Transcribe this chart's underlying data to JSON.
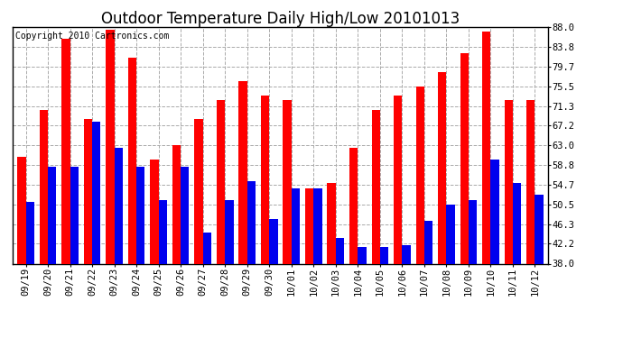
{
  "title": "Outdoor Temperature Daily High/Low 20101013",
  "copyright": "Copyright 2010 Cartronics.com",
  "dates": [
    "09/19",
    "09/20",
    "09/21",
    "09/22",
    "09/23",
    "09/24",
    "09/25",
    "09/26",
    "09/27",
    "09/28",
    "09/29",
    "09/30",
    "10/01",
    "10/02",
    "10/03",
    "10/04",
    "10/05",
    "10/06",
    "10/07",
    "10/08",
    "10/09",
    "10/10",
    "10/11",
    "10/12"
  ],
  "highs": [
    60.5,
    70.5,
    85.5,
    68.5,
    87.5,
    81.5,
    60.0,
    63.0,
    68.5,
    72.5,
    76.5,
    73.5,
    72.5,
    54.0,
    55.0,
    62.5,
    70.5,
    73.5,
    75.5,
    78.5,
    82.5,
    87.0,
    72.5,
    72.5
  ],
  "lows": [
    51.0,
    58.5,
    58.5,
    68.0,
    62.5,
    58.5,
    51.5,
    58.5,
    44.5,
    51.5,
    55.5,
    47.5,
    54.0,
    54.0,
    43.5,
    41.5,
    41.5,
    42.0,
    47.0,
    50.5,
    51.5,
    60.0,
    55.0,
    52.5
  ],
  "bar_width": 0.38,
  "ylim": [
    38.0,
    88.0
  ],
  "ybase": 38.0,
  "yticks": [
    38.0,
    42.2,
    46.3,
    50.5,
    54.7,
    58.8,
    63.0,
    67.2,
    71.3,
    75.5,
    79.7,
    83.8,
    88.0
  ],
  "high_color": "#ff0000",
  "low_color": "#0000ee",
  "bg_color": "#ffffff",
  "grid_color": "#aaaaaa",
  "title_fontsize": 12,
  "tick_fontsize": 7.5,
  "copyright_fontsize": 7
}
